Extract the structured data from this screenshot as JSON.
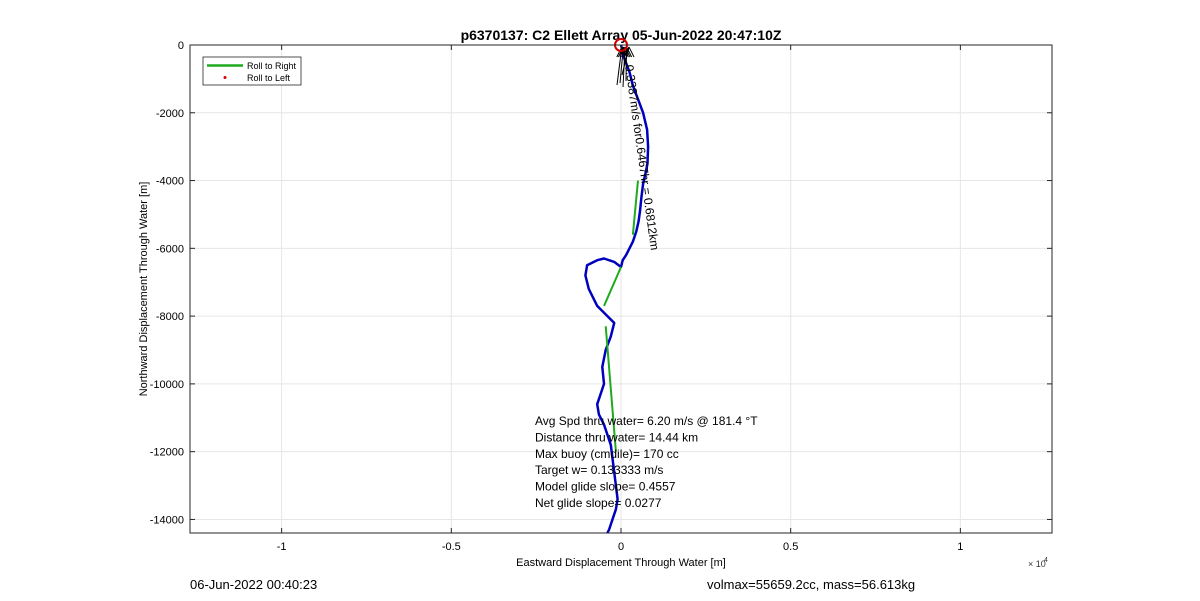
{
  "chart_data": {
    "type": "line",
    "title": "p6370137: C2 Ellett Array 05-Jun-2022 20:47:10Z",
    "xlabel": "Eastward Displacement Through Water [m]",
    "ylabel": "Northward Displacement Through Water [m]",
    "x_exponent_label": "× 10",
    "x_exponent_power": "4",
    "xlim": [
      -12700,
      12700
    ],
    "ylim": [
      -14400,
      0
    ],
    "x_ticks": [
      -10000,
      -5000,
      0,
      5000,
      10000
    ],
    "x_tick_labels": [
      "-1",
      "-0.5",
      "0",
      "0.5",
      "1"
    ],
    "y_ticks": [
      0,
      -2000,
      -4000,
      -6000,
      -8000,
      -10000,
      -12000,
      -14000
    ],
    "y_tick_labels": [
      "0",
      "-2000",
      "-4000",
      "-6000",
      "-8000",
      "-10000",
      "-12000",
      "-14000"
    ],
    "grid": true,
    "legend_placement": "top-left",
    "legend": [
      "Roll to Right",
      "Roll to Left"
    ],
    "series": [
      {
        "name": "track",
        "color": "#0000bf",
        "x": [
          0,
          100,
          250,
          350,
          500,
          650,
          770,
          800,
          780,
          720,
          650,
          600,
          560,
          520,
          450,
          350,
          250,
          150,
          50,
          0,
          -200,
          -500,
          -700,
          -1000,
          -1050,
          -950,
          -700,
          -400,
          -200,
          -300,
          -450,
          -550,
          -500,
          -600,
          -700,
          -650,
          -500,
          -400,
          -300,
          -250,
          -200,
          -150,
          -100,
          -150,
          -250,
          -350,
          -400
        ],
        "y": [
          0,
          -400,
          -800,
          -1200,
          -1600,
          -2000,
          -2500,
          -3000,
          -3500,
          -3800,
          -4100,
          -4500,
          -4900,
          -5200,
          -5500,
          -5800,
          -6000,
          -6200,
          -6350,
          -6550,
          -6400,
          -6300,
          -6350,
          -6500,
          -6800,
          -7200,
          -7700,
          -8000,
          -8200,
          -8600,
          -9000,
          -9500,
          -10000,
          -10300,
          -10600,
          -10900,
          -11200,
          -11500,
          -11800,
          -12200,
          -12600,
          -13000,
          -13400,
          -13700,
          -14000,
          -14300,
          -14400
        ]
      },
      {
        "name": "Roll to Right",
        "color": "#1faa1f",
        "segments": [
          [
            [
              500,
              -4000
            ],
            [
              350,
              -5600
            ]
          ],
          [
            [
              0,
              -6550
            ],
            [
              -500,
              -7700
            ]
          ],
          [
            [
              -450,
              -8300
            ],
            [
              -150,
              -12000
            ]
          ]
        ]
      }
    ],
    "markers": {
      "start_circle": {
        "x": 0,
        "y": 0,
        "color": "#d40000"
      }
    },
    "rotated_annotation": "0.3387m/s for0.6467hr = 0.6812km",
    "stats": [
      "Avg Spd thru water=  6.20 m/s @ 181.4 °T",
      "Distance thru water= 14.44 km",
      "Max buoy (cmdile)= 170 cc",
      "Target w= 0.133333 m/s",
      "Model glide slope= 0.4557",
      "Net glide slope= 0.0277"
    ]
  },
  "footer": {
    "left": "06-Jun-2022 00:40:23",
    "right": "volmax=55659.2cc, mass=56.613kg"
  },
  "colors": {
    "track": "#0000bf",
    "roll_right": "#1faa1f",
    "roll_left": "#d40000",
    "grid": "#e6e6e6"
  }
}
